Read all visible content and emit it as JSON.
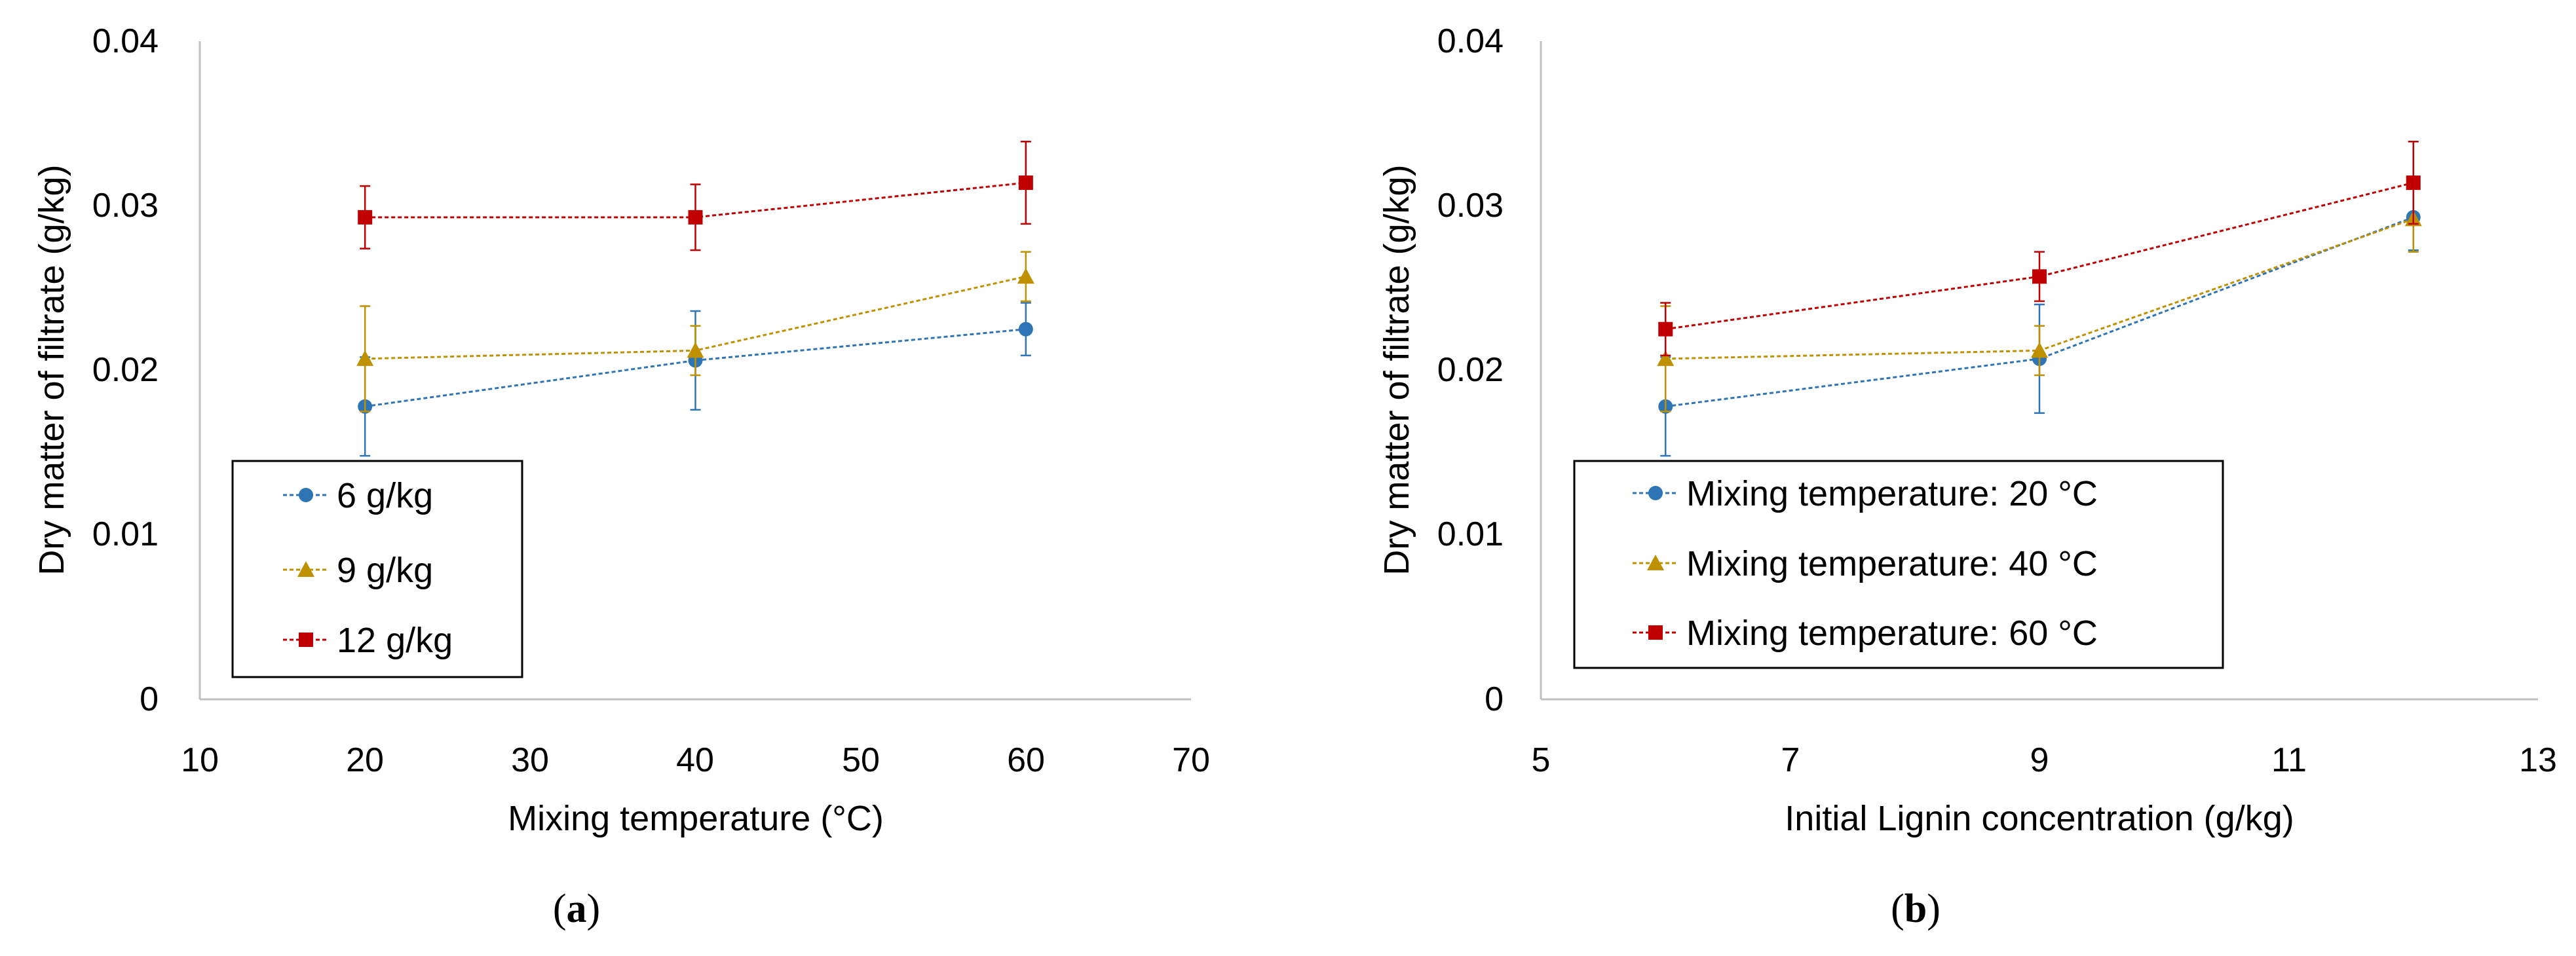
{
  "chart_data": [
    {
      "type": "line",
      "caption_letter": "a",
      "xlabel": "Mixing temperature (°C)",
      "ylabel": "Dry matter of filtrate (g/kg)",
      "xlim": [
        10,
        70
      ],
      "ylim": [
        0,
        0.04
      ],
      "xticks": [
        "10",
        "20",
        "30",
        "40",
        "50",
        "60",
        "70"
      ],
      "yticks": [
        "0",
        "0.01",
        "0.02",
        "0.03",
        "0.04"
      ],
      "legend_position": "lower-left",
      "series": [
        {
          "name": "6 g/kg",
          "color": "#2e75b6",
          "marker": "circle",
          "x": [
            20,
            40,
            60
          ],
          "y": [
            0.0178,
            0.0206,
            0.0225
          ],
          "err": [
            0.003,
            0.003,
            0.0016
          ]
        },
        {
          "name": "9 g/kg",
          "color": "#bf9000",
          "marker": "triangle",
          "x": [
            20,
            40,
            60
          ],
          "y": [
            0.0207,
            0.0212,
            0.0257
          ],
          "err": [
            0.0032,
            0.0015,
            0.0015
          ]
        },
        {
          "name": "12 g/kg",
          "color": "#c00000",
          "marker": "square",
          "x": [
            20,
            40,
            60
          ],
          "y": [
            0.0293,
            0.0293,
            0.0314
          ],
          "err": [
            0.0019,
            0.002,
            0.0025
          ]
        }
      ]
    },
    {
      "type": "line",
      "caption_letter": "b",
      "xlabel": "Initial Lignin concentration (g/kg)",
      "ylabel": "Dry matter of filtrate (g/kg)",
      "xlim": [
        5,
        13
      ],
      "ylim": [
        0,
        0.04
      ],
      "xticks": [
        "5",
        "7",
        "9",
        "11",
        "13"
      ],
      "yticks": [
        "0",
        "0.01",
        "0.02",
        "0.03",
        "0.04"
      ],
      "legend_position": "lower-left",
      "series": [
        {
          "name": "Mixing temperature: 20 °C",
          "color": "#2e75b6",
          "marker": "circle",
          "x": [
            6,
            9,
            12
          ],
          "y": [
            0.0178,
            0.0207,
            0.0293
          ],
          "err": [
            0.003,
            0.0033,
            0.002
          ]
        },
        {
          "name": "Mixing temperature: 40 °C",
          "color": "#bf9000",
          "marker": "triangle",
          "x": [
            6,
            9,
            12
          ],
          "y": [
            0.0207,
            0.0212,
            0.0292
          ],
          "err": [
            0.0032,
            0.0015,
            0.002
          ]
        },
        {
          "name": "Mixing temperature: 60 °C",
          "color": "#c00000",
          "marker": "square",
          "x": [
            6,
            9,
            12
          ],
          "y": [
            0.0225,
            0.0257,
            0.0314
          ],
          "err": [
            0.0016,
            0.0015,
            0.0025
          ]
        }
      ]
    }
  ]
}
